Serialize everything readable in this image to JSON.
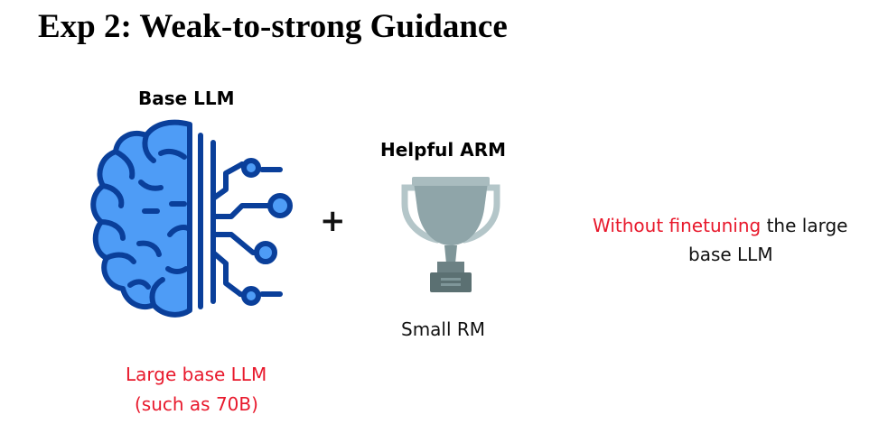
{
  "title": "Exp 2: Weak-to-strong Guidance",
  "base_llm": {
    "heading": "Base LLM",
    "caption_line1": "Large base LLM",
    "caption_line2": "(such as 70B)",
    "icon": "brain-circuit-icon"
  },
  "operator": "+",
  "reward_model": {
    "heading": "Helpful ARM",
    "caption": "Small RM",
    "icon": "trophy-icon"
  },
  "note": {
    "highlight": "Without finetuning",
    "rest_line1": " the large",
    "line2": "base LLM"
  },
  "colors": {
    "brain_fill": "#4e9cf6",
    "brain_outline": "#0a3f9a",
    "trophy_cup": "#8fa5a9",
    "trophy_base": "#5b7072",
    "highlight": "#e8192c"
  }
}
